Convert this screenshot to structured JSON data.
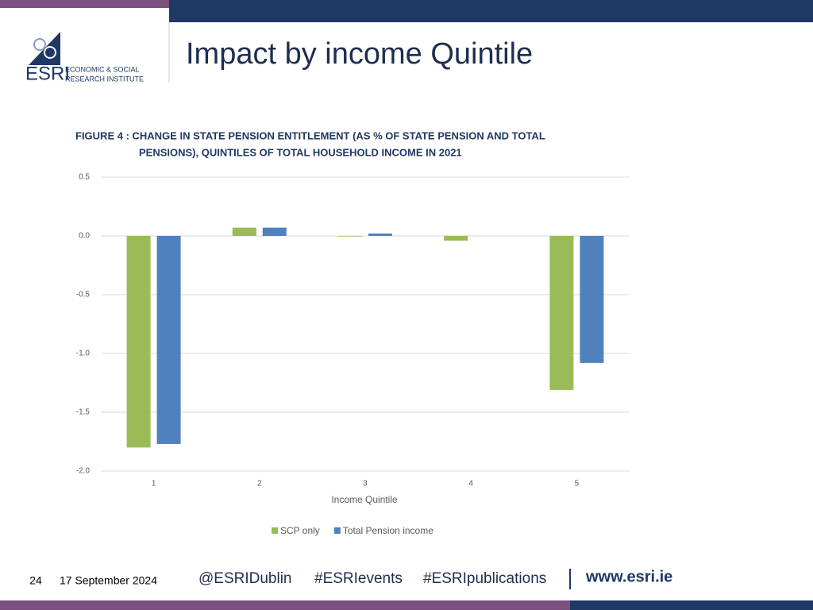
{
  "header": {
    "title": "Impact by income Quintile",
    "logo": {
      "abbr": "ESRI",
      "line1": "ECONOMIC & SOCIAL",
      "line2": "RESEARCH INSTITUTE"
    }
  },
  "footer": {
    "page": "24",
    "date": "17 September 2024",
    "handles": [
      "@ESRIDublin",
      "#ESRIevents",
      "#ESRIpublications"
    ],
    "url": "www.esri.ie"
  },
  "chart_data": {
    "type": "bar",
    "title": [
      "FIGURE 4 : CHANGE IN STATE PENSION ENTITLEMENT (AS % OF STATE PENSION AND TOTAL",
      "PENSIONS), QUINTILES OF TOTAL HOUSEHOLD INCOME IN 2021"
    ],
    "x_label": "Income Quintile",
    "categories": [
      "1",
      "2",
      "3",
      "4",
      "5"
    ],
    "series": [
      {
        "name": "SCP only",
        "color": "#9bbb59",
        "values": [
          -1.8,
          0.07,
          -0.005,
          -0.04,
          -1.31
        ]
      },
      {
        "name": "Total Pension income",
        "color": "#4f81bd",
        "values": [
          -1.77,
          0.07,
          0.02,
          0,
          -1.08
        ]
      }
    ],
    "ylim": [
      -2.0,
      0.5
    ],
    "yticks": [
      0.5,
      {
        "value": 0,
        "label": "0.0"
      },
      -0.5,
      {
        "value": -1,
        "label": "-1.0"
      },
      -1.5,
      {
        "value": -2,
        "label": "-2.0"
      }
    ],
    "grid": true,
    "legend": "bottom"
  }
}
